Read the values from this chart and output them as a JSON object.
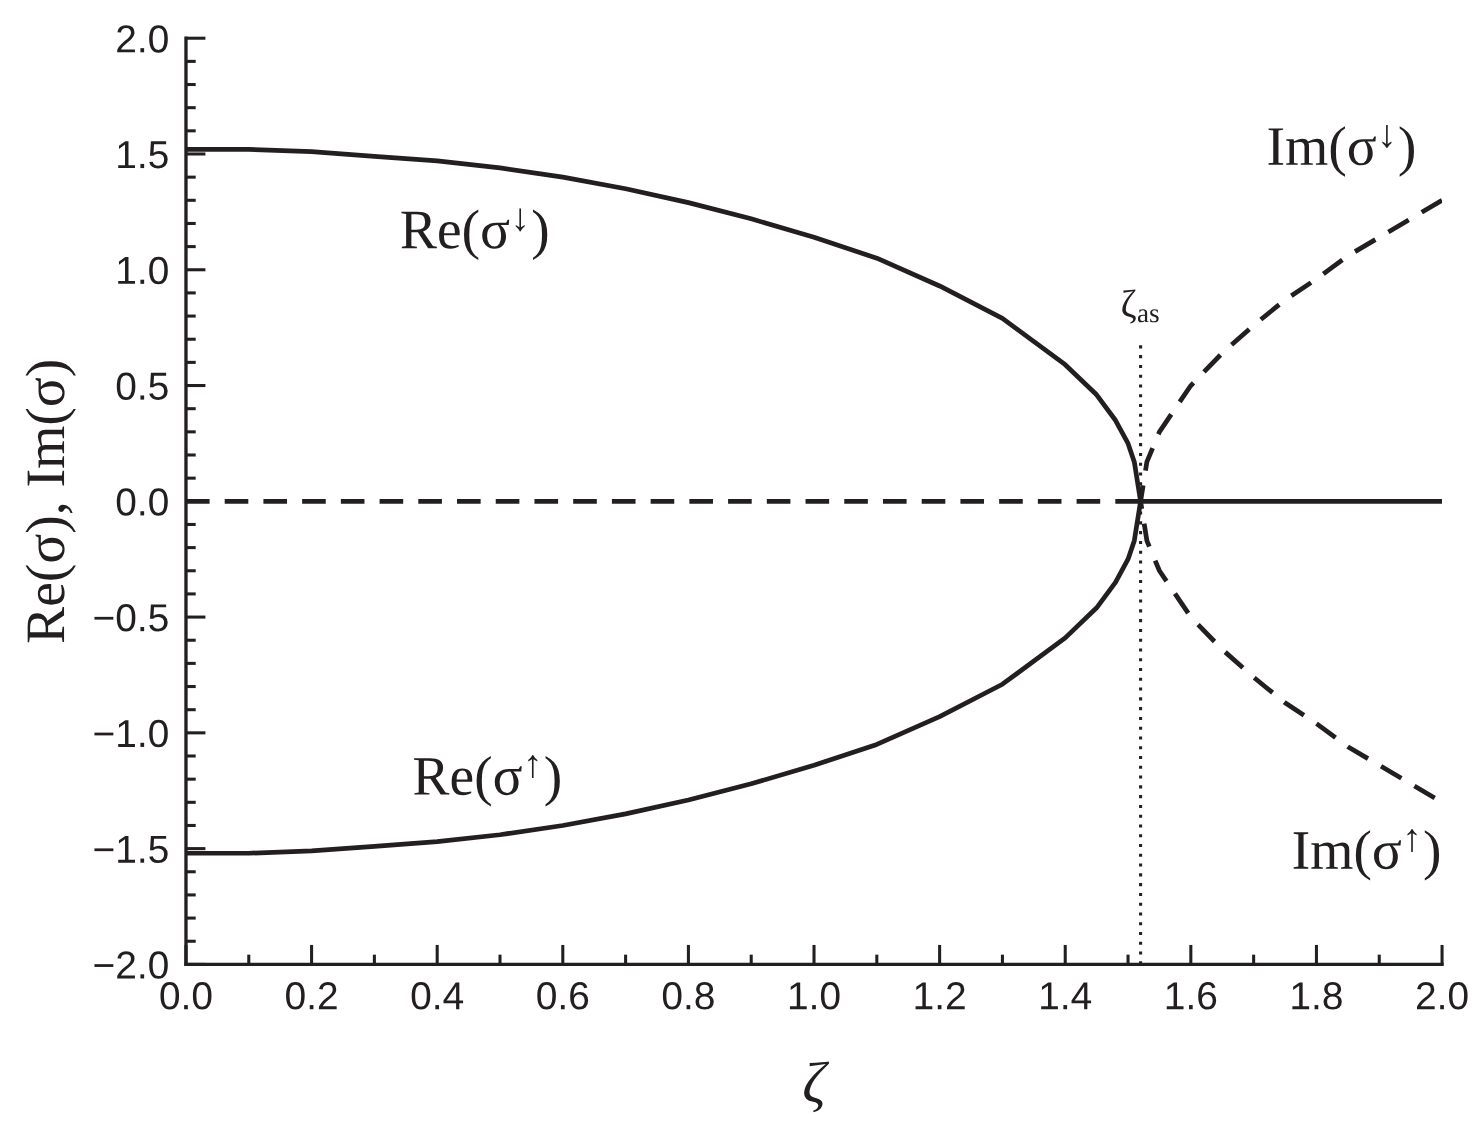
{
  "chart_data": {
    "type": "line",
    "xlabel": "ζ",
    "ylabel": "Re(σ), Im(σ)",
    "xlim": [
      0,
      2.0
    ],
    "ylim": [
      -2.0,
      2.0
    ],
    "xticks": [
      {
        "value": 0,
        "label": "0.0"
      },
      {
        "value": 0.1,
        "label": null
      },
      {
        "value": 0.2,
        "label": "0.2"
      },
      {
        "value": 0.3,
        "label": null
      },
      {
        "value": 0.4,
        "label": "0.4"
      },
      {
        "value": 0.5,
        "label": null
      },
      {
        "value": 0.6,
        "label": "0.6"
      },
      {
        "value": 0.7,
        "label": null
      },
      {
        "value": 0.8,
        "label": "0.8"
      },
      {
        "value": 0.9,
        "label": null
      },
      {
        "value": 1.0,
        "label": "1.0"
      },
      {
        "value": 1.1,
        "label": null
      },
      {
        "value": 1.2,
        "label": "1.2"
      },
      {
        "value": 1.3,
        "label": null
      },
      {
        "value": 1.4,
        "label": "1.4"
      },
      {
        "value": 1.5,
        "label": null
      },
      {
        "value": 1.6,
        "label": "1.6"
      },
      {
        "value": 1.7,
        "label": null
      },
      {
        "value": 1.8,
        "label": "1.8"
      },
      {
        "value": 1.9,
        "label": null
      },
      {
        "value": 2.0,
        "label": "2.0"
      }
    ],
    "yticks": [
      {
        "value": -2.0,
        "label": "−2.0"
      },
      {
        "value": -1.9,
        "label": null
      },
      {
        "value": -1.8,
        "label": null
      },
      {
        "value": -1.7,
        "label": null
      },
      {
        "value": -1.6,
        "label": null
      },
      {
        "value": -1.5,
        "label": "−1.5"
      },
      {
        "value": -1.4,
        "label": null
      },
      {
        "value": -1.3,
        "label": null
      },
      {
        "value": -1.2,
        "label": null
      },
      {
        "value": -1.1,
        "label": null
      },
      {
        "value": -1.0,
        "label": "−1.0"
      },
      {
        "value": -0.9,
        "label": null
      },
      {
        "value": -0.8,
        "label": null
      },
      {
        "value": -0.7,
        "label": null
      },
      {
        "value": -0.6,
        "label": null
      },
      {
        "value": -0.5,
        "label": "−0.5"
      },
      {
        "value": -0.4,
        "label": null
      },
      {
        "value": -0.3,
        "label": null
      },
      {
        "value": -0.2,
        "label": null
      },
      {
        "value": -0.1,
        "label": null
      },
      {
        "value": 0,
        "label": "0.0"
      },
      {
        "value": 0.1,
        "label": null
      },
      {
        "value": 0.2,
        "label": null
      },
      {
        "value": 0.3,
        "label": null
      },
      {
        "value": 0.4,
        "label": null
      },
      {
        "value": 0.5,
        "label": "0.5"
      },
      {
        "value": 0.6,
        "label": null
      },
      {
        "value": 0.7,
        "label": null
      },
      {
        "value": 0.8,
        "label": null
      },
      {
        "value": 0.9,
        "label": null
      },
      {
        "value": 1.0,
        "label": "1.0"
      },
      {
        "value": 1.1,
        "label": null
      },
      {
        "value": 1.2,
        "label": null
      },
      {
        "value": 1.3,
        "label": null
      },
      {
        "value": 1.4,
        "label": null
      },
      {
        "value": 1.5,
        "label": "1.5"
      },
      {
        "value": 1.6,
        "label": null
      },
      {
        "value": 1.7,
        "label": null
      },
      {
        "value": 1.8,
        "label": null
      },
      {
        "value": 1.9,
        "label": null
      },
      {
        "value": 2.0,
        "label": "2.0"
      }
    ],
    "series": [
      {
        "color": "#231f20",
        "line_style": "solid",
        "x": [
          0,
          0.1,
          0.2,
          0.3,
          0.4,
          0.5,
          0.6,
          0.7,
          0.8,
          0.9,
          1.0,
          1.1,
          1.2,
          1.3,
          1.4,
          1.45,
          1.48,
          1.5,
          1.51,
          1.52,
          1.51,
          1.5,
          1.48,
          1.45,
          1.4,
          1.3,
          1.2,
          1.1,
          1.0,
          0.9,
          0.8,
          0.7,
          0.6,
          0.5,
          0.4,
          0.3,
          0.2,
          0.1,
          0
        ],
        "values": [
          1.52,
          1.52,
          1.51,
          1.49,
          1.47,
          1.44,
          1.4,
          1.35,
          1.29,
          1.22,
          1.14,
          1.05,
          0.93,
          0.79,
          0.59,
          0.46,
          0.35,
          0.25,
          0.17,
          0,
          -0.17,
          -0.25,
          -0.35,
          -0.46,
          -0.59,
          -0.79,
          -0.93,
          -1.05,
          -1.14,
          -1.22,
          -1.29,
          -1.35,
          -1.4,
          -1.44,
          -1.47,
          -1.49,
          -1.51,
          -1.52,
          -1.52
        ]
      },
      {
        "color": "#231f20",
        "line_style": "dashed",
        "x": [
          2.0,
          1.95,
          1.9,
          1.85,
          1.8,
          1.75,
          1.7,
          1.65,
          1.6,
          1.55,
          1.53,
          1.52,
          1.53,
          1.55,
          1.6,
          1.65,
          1.7,
          1.75,
          1.8,
          1.85,
          1.9,
          1.95,
          2.0
        ],
        "values": [
          1.3,
          1.22,
          1.14,
          1.06,
          0.96,
          0.87,
          0.76,
          0.64,
          0.5,
          0.3,
          0.17,
          0,
          -0.17,
          -0.3,
          -0.5,
          -0.64,
          -0.76,
          -0.87,
          -0.96,
          -1.06,
          -1.14,
          -1.22,
          -1.3
        ]
      },
      {
        "color": "#231f20",
        "line_style": "dashed",
        "x": [
          0,
          1.52
        ],
        "values": [
          0,
          0
        ]
      },
      {
        "color": "#231f20",
        "line_style": "solid",
        "x": [
          1.52,
          2.0
        ],
        "values": [
          0,
          0
        ]
      }
    ],
    "annotations": [
      "Re(σ$^{↓}$)",
      "Re(σ$^{↑}$)",
      "Im(σ$^{↓}$)",
      "Im(σ$^{↑}$)"
    ],
    "ref_lines": [
      {
        "axis": "x",
        "value": 1.52,
        "label": "ζ$_{as}$",
        "color": "#231f20",
        "line_style": "dotted"
      }
    ]
  }
}
